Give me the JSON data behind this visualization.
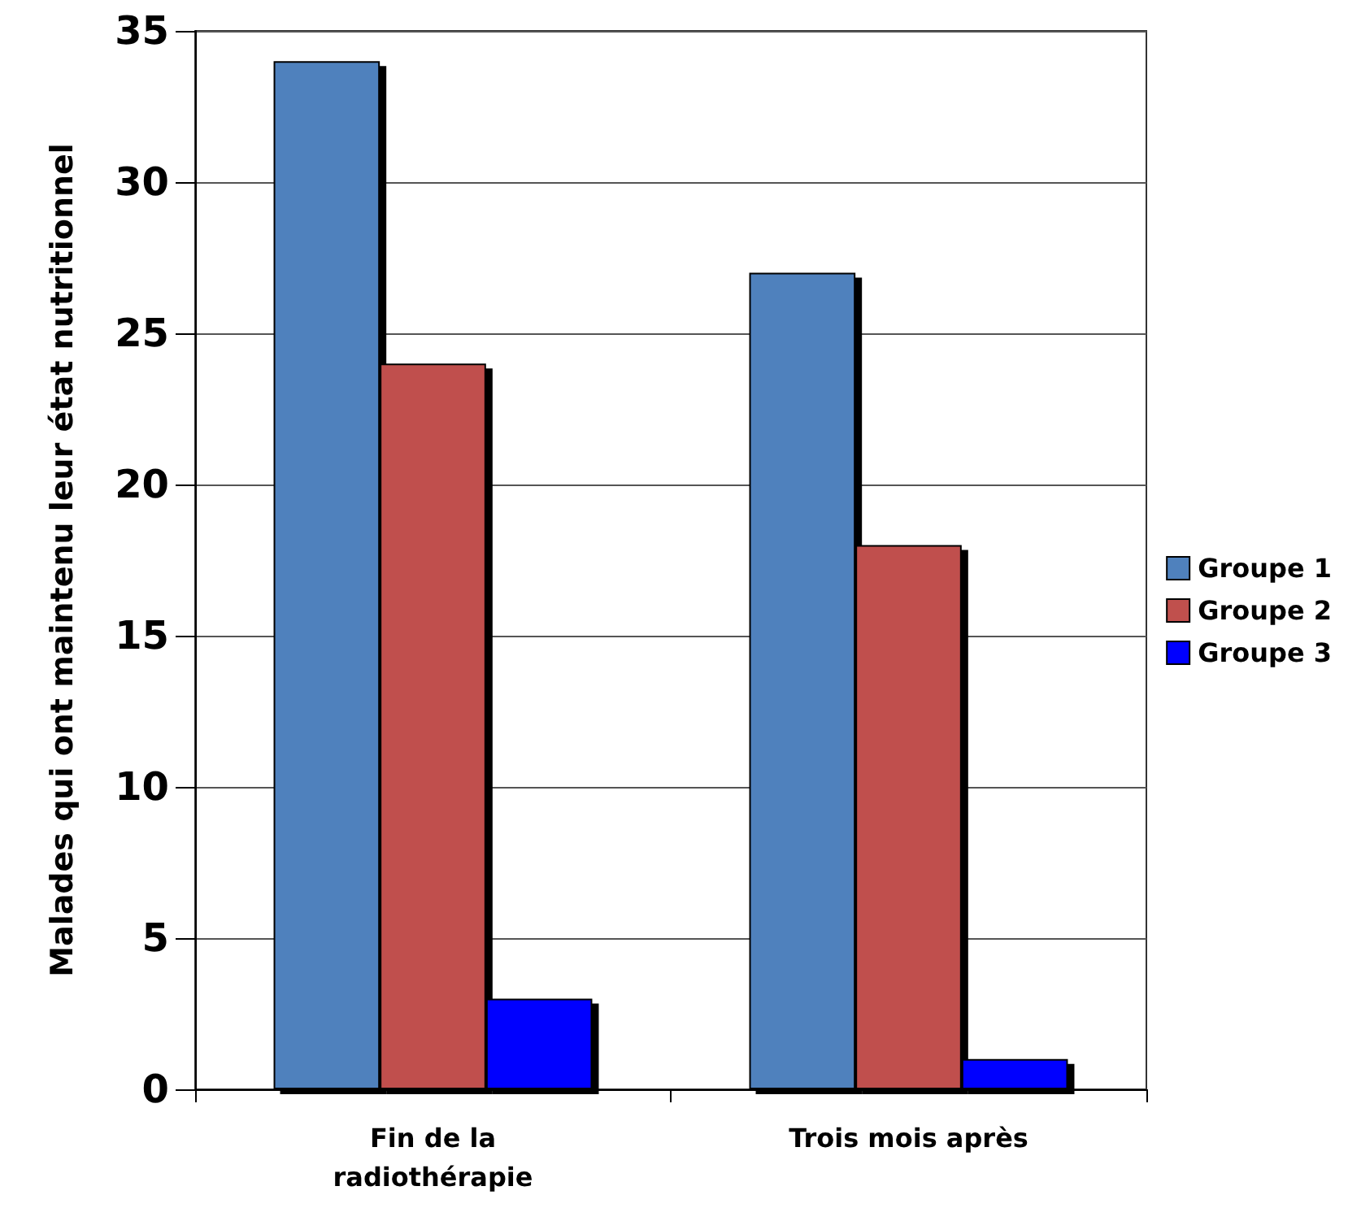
{
  "chart_data": {
    "type": "bar",
    "ylabel": "Malades qui ont maintenu leur état nutritionnel",
    "categories": [
      "Fin de la\nradiothérapie",
      "Trois mois après"
    ],
    "series": [
      {
        "name": "Groupe 1",
        "color": "#4f81bd",
        "values": [
          34,
          27
        ]
      },
      {
        "name": "Groupe 2",
        "color": "#c0504d",
        "values": [
          24,
          18
        ]
      },
      {
        "name": "Groupe 3",
        "color": "#0000ff",
        "values": [
          3,
          1
        ]
      }
    ],
    "ylim": [
      0,
      35
    ],
    "yticks": [
      0,
      5,
      10,
      15,
      20,
      25,
      30,
      35
    ],
    "grid": "y",
    "legend": "right"
  }
}
